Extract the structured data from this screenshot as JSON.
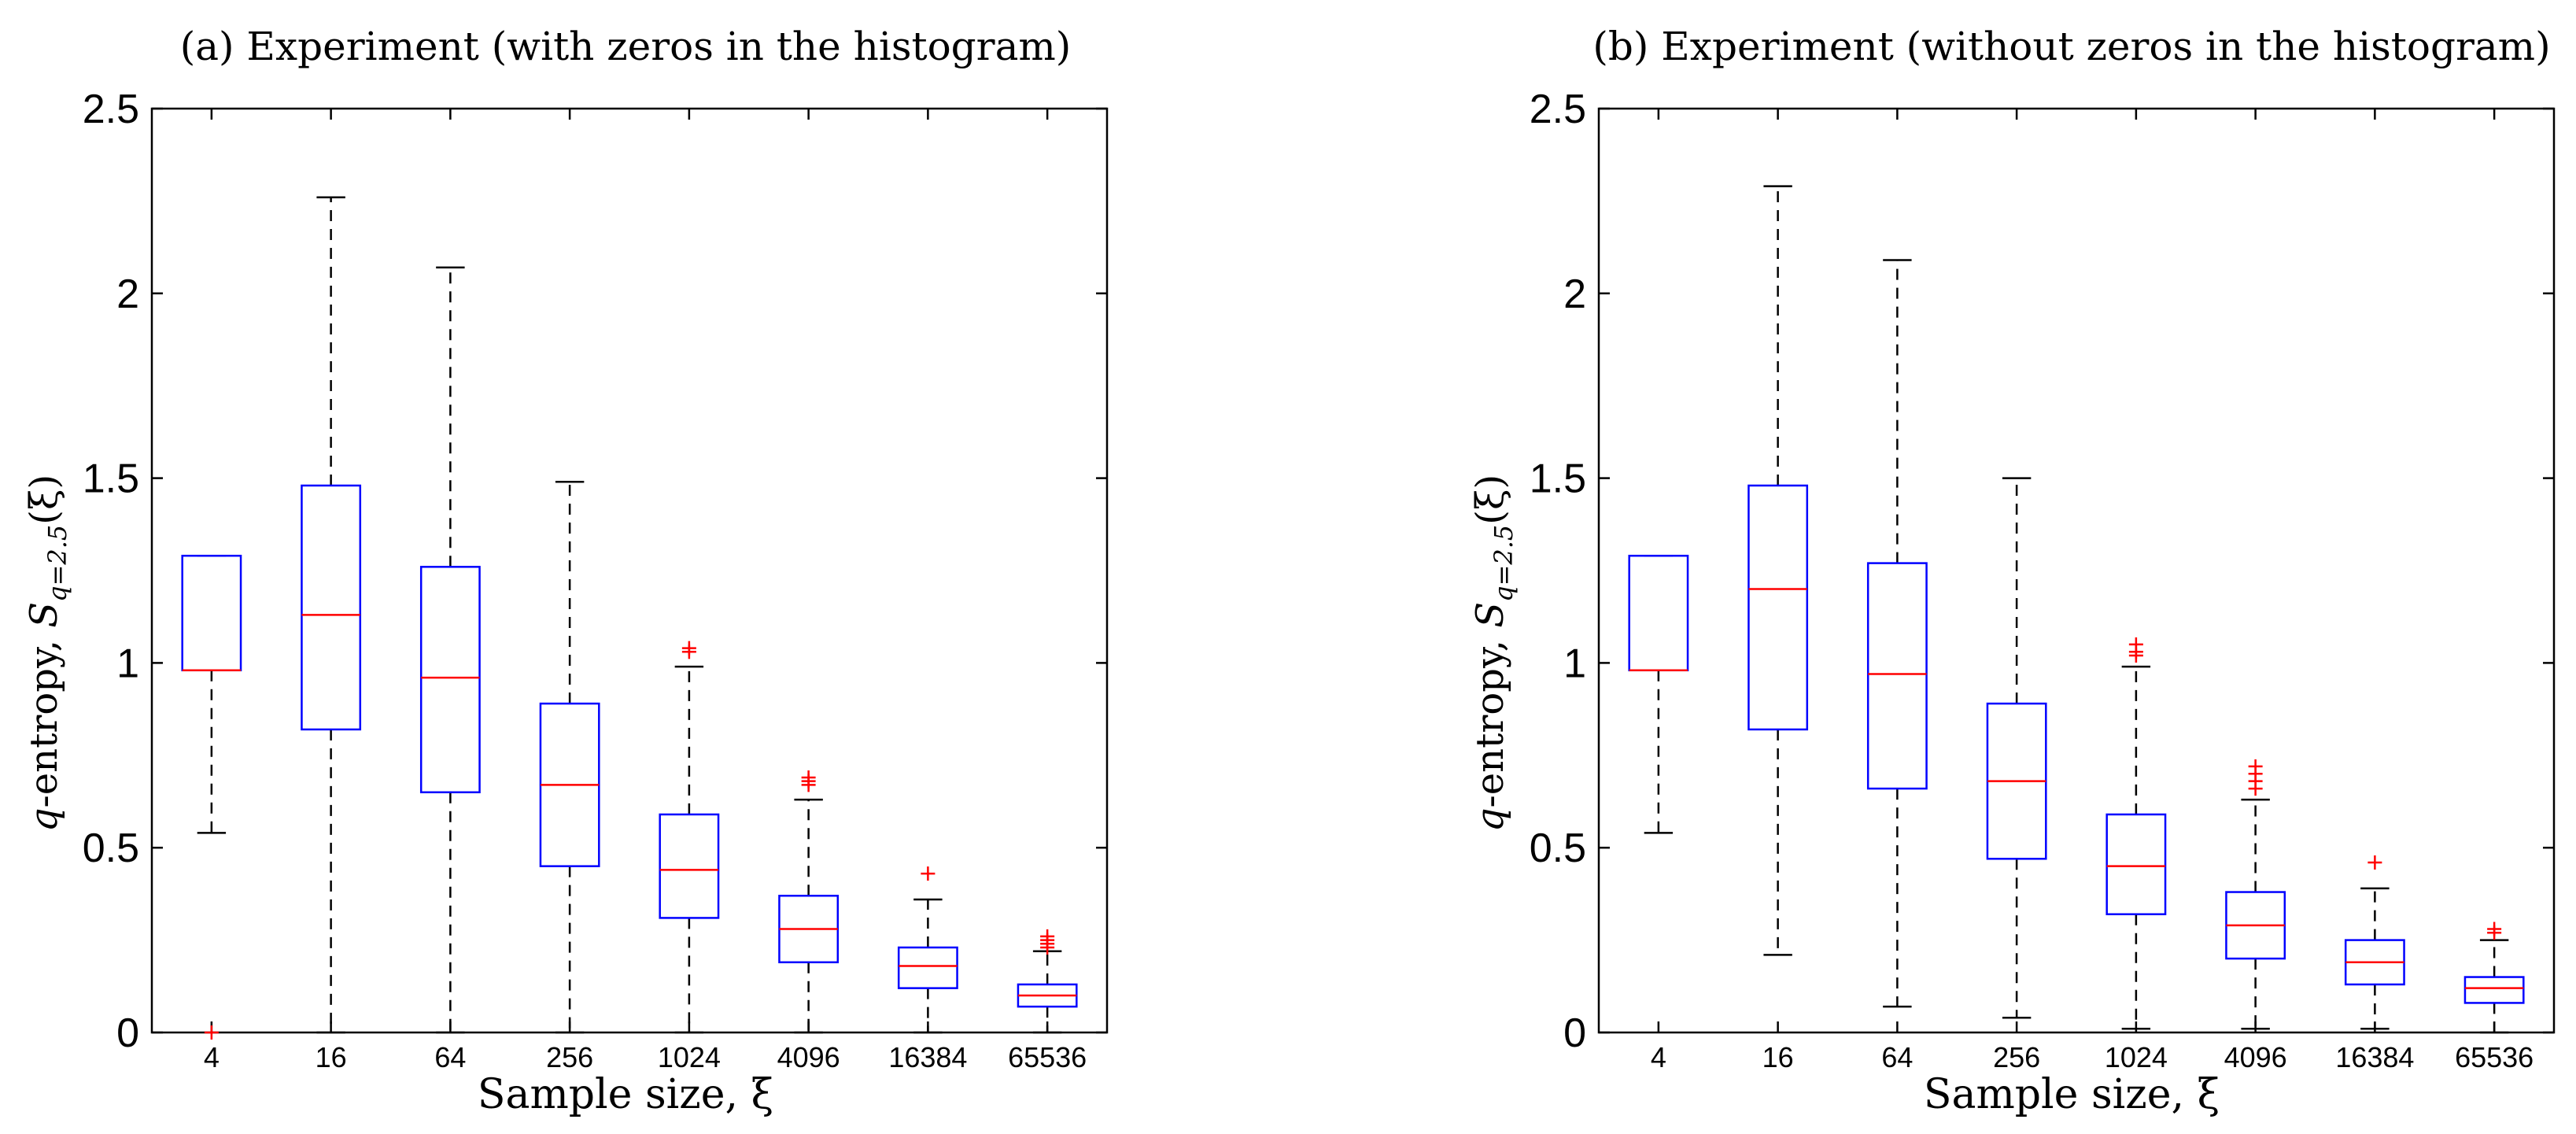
{
  "chart_data": [
    {
      "type": "boxplot",
      "title": "(a) Experiment (with zeros in the histogram)",
      "xlabel": "Sample size, ξ",
      "ylabel_prefix": "q",
      "ylabel_text": "-entropy, ",
      "ylabel_symbol": "S",
      "ylabel_subscript": "q=2.5",
      "ylabel_arg": "(ξ)",
      "ylim": [
        0,
        2.5
      ],
      "yticks": [
        "0",
        "0.5",
        "1",
        "1.5",
        "2",
        "2.5"
      ],
      "ytick_values": [
        0,
        0.5,
        1,
        1.5,
        2,
        2.5
      ],
      "categories": [
        "4",
        "16",
        "64",
        "256",
        "1024",
        "4096",
        "16384",
        "65536"
      ],
      "boxes": [
        {
          "q1": 0.98,
          "median": 0.98,
          "q3": 1.29,
          "whisker_low": 0.54,
          "whisker_high": 1.29,
          "outliers": [
            0.0
          ]
        },
        {
          "q1": 0.82,
          "median": 1.13,
          "q3": 1.48,
          "whisker_low": 0.0,
          "whisker_high": 2.26,
          "outliers": []
        },
        {
          "q1": 0.65,
          "median": 0.96,
          "q3": 1.26,
          "whisker_low": 0.0,
          "whisker_high": 2.07,
          "outliers": []
        },
        {
          "q1": 0.45,
          "median": 0.67,
          "q3": 0.89,
          "whisker_low": 0.0,
          "whisker_high": 1.49,
          "outliers": []
        },
        {
          "q1": 0.31,
          "median": 0.44,
          "q3": 0.59,
          "whisker_low": 0.0,
          "whisker_high": 0.99,
          "outliers": [
            1.03,
            1.04
          ]
        },
        {
          "q1": 0.19,
          "median": 0.28,
          "q3": 0.37,
          "whisker_low": 0.0,
          "whisker_high": 0.63,
          "outliers": [
            0.67,
            0.68,
            0.69
          ]
        },
        {
          "q1": 0.12,
          "median": 0.18,
          "q3": 0.23,
          "whisker_low": 0.0,
          "whisker_high": 0.36,
          "outliers": [
            0.43
          ]
        },
        {
          "q1": 0.07,
          "median": 0.1,
          "q3": 0.13,
          "whisker_low": 0.0,
          "whisker_high": 0.22,
          "outliers": [
            0.23,
            0.24,
            0.25,
            0.26
          ]
        }
      ]
    },
    {
      "type": "boxplot",
      "title": "(b) Experiment (without zeros in the histogram)",
      "xlabel": "Sample size, ξ",
      "ylabel_prefix": "q",
      "ylabel_text": "-entropy, ",
      "ylabel_symbol": "S",
      "ylabel_subscript": "q=2.5",
      "ylabel_arg": "(ξ)",
      "ylim": [
        0,
        2.5
      ],
      "yticks": [
        "0",
        "0.5",
        "1",
        "1.5",
        "2",
        "2.5"
      ],
      "ytick_values": [
        0,
        0.5,
        1,
        1.5,
        2,
        2.5
      ],
      "categories": [
        "4",
        "16",
        "64",
        "256",
        "1024",
        "4096",
        "16384",
        "65536"
      ],
      "boxes": [
        {
          "q1": 0.98,
          "median": 0.98,
          "q3": 1.29,
          "whisker_low": 0.54,
          "whisker_high": 1.29,
          "outliers": []
        },
        {
          "q1": 0.82,
          "median": 1.2,
          "q3": 1.48,
          "whisker_low": 0.21,
          "whisker_high": 2.29,
          "outliers": []
        },
        {
          "q1": 0.66,
          "median": 0.97,
          "q3": 1.27,
          "whisker_low": 0.07,
          "whisker_high": 2.09,
          "outliers": []
        },
        {
          "q1": 0.47,
          "median": 0.68,
          "q3": 0.89,
          "whisker_low": 0.04,
          "whisker_high": 1.5,
          "outliers": []
        },
        {
          "q1": 0.32,
          "median": 0.45,
          "q3": 0.59,
          "whisker_low": 0.01,
          "whisker_high": 0.99,
          "outliers": [
            1.02,
            1.03,
            1.05
          ]
        },
        {
          "q1": 0.2,
          "median": 0.29,
          "q3": 0.38,
          "whisker_low": 0.01,
          "whisker_high": 0.63,
          "outliers": [
            0.66,
            0.68,
            0.7,
            0.72
          ]
        },
        {
          "q1": 0.13,
          "median": 0.19,
          "q3": 0.25,
          "whisker_low": 0.01,
          "whisker_high": 0.39,
          "outliers": [
            0.46
          ]
        },
        {
          "q1": 0.08,
          "median": 0.12,
          "q3": 0.15,
          "whisker_low": 0.0,
          "whisker_high": 0.25,
          "outliers": [
            0.27,
            0.28
          ]
        }
      ]
    }
  ],
  "colors": {
    "box": "#0000ff",
    "median": "#ff0000",
    "whisker": "#000000",
    "outlier": "#ff0000",
    "axes": "#000000"
  }
}
